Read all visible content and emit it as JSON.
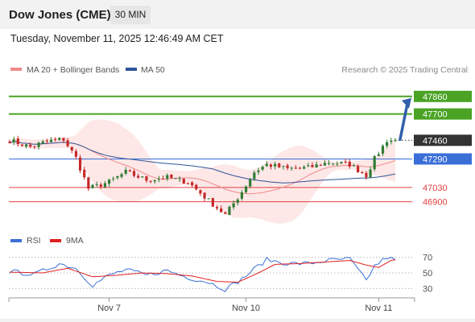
{
  "header": {
    "title": "Dow Jones (CME)",
    "timeframe": "30 MIN",
    "timestamp": "Tuesday, November 11, 2025 12:46:49 AM CET"
  },
  "legend": {
    "ma20_label": "MA 20 + Bollinger Bands",
    "ma50_label": "MA 50",
    "copyright": "Research © 2025 Trading Central",
    "rsi_label": "RSI",
    "rsi_ma_label": "9MA"
  },
  "colors": {
    "ma20": "#f08a8a",
    "ma50": "#2f5597",
    "bollinger_fill": "#fde3e3",
    "resistance": "#4aa324",
    "support_blue": "#3a6fd8",
    "support_red": "#e0413f",
    "current": "#333333",
    "arrow": "#2f5fa8",
    "candle_up": "#2f7d32",
    "candle_down": "#c62828",
    "rsi": "#3a6fd8",
    "rsi_ma": "#e02020"
  },
  "chart_data": {
    "type": "candlestick",
    "price_levels": [
      {
        "label": "47860",
        "value": 47860,
        "kind": "resistance"
      },
      {
        "label": "47700",
        "value": 47700,
        "kind": "resistance"
      },
      {
        "label": "47460",
        "value": 47460,
        "kind": "current"
      },
      {
        "label": "47290",
        "value": 47290,
        "kind": "pivot"
      },
      {
        "label": "47030",
        "value": 47030,
        "kind": "support"
      },
      {
        "label": "46900",
        "value": 46900,
        "kind": "support"
      }
    ],
    "price_ylim": [
      46640,
      48020
    ],
    "x_tick_labels": [
      {
        "label": "Nov 7",
        "index": 24
      },
      {
        "label": "Nov 10",
        "index": 57
      },
      {
        "label": "Nov 11",
        "index": 89
      }
    ],
    "candle_count": 94,
    "close_keyframes": [
      [
        0,
        47460
      ],
      [
        5,
        47400
      ],
      [
        9,
        47450
      ],
      [
        13,
        47470
      ],
      [
        16,
        47300
      ],
      [
        19,
        47020
      ],
      [
        24,
        47080
      ],
      [
        28,
        47170
      ],
      [
        33,
        47100
      ],
      [
        38,
        47120
      ],
      [
        43,
        47080
      ],
      [
        48,
        46910
      ],
      [
        52,
        46780
      ],
      [
        56,
        46990
      ],
      [
        59,
        47170
      ],
      [
        62,
        47240
      ],
      [
        67,
        47200
      ],
      [
        72,
        47210
      ],
      [
        77,
        47260
      ],
      [
        82,
        47240
      ],
      [
        86,
        47140
      ],
      [
        88,
        47290
      ],
      [
        91,
        47460
      ],
      [
        93,
        47460
      ]
    ],
    "projection": {
      "from": 47460,
      "to": 47860
    },
    "rsi": {
      "levels": [
        70,
        50,
        30
      ],
      "ylim": [
        20,
        80
      ],
      "rsi_keyframes": [
        [
          0,
          52
        ],
        [
          6,
          48
        ],
        [
          12,
          62
        ],
        [
          16,
          56
        ],
        [
          20,
          34
        ],
        [
          24,
          47
        ],
        [
          28,
          54
        ],
        [
          33,
          47
        ],
        [
          38,
          53
        ],
        [
          43,
          44
        ],
        [
          48,
          38
        ],
        [
          52,
          29
        ],
        [
          56,
          42
        ],
        [
          59,
          55
        ],
        [
          62,
          67
        ],
        [
          67,
          62
        ],
        [
          72,
          62
        ],
        [
          77,
          66
        ],
        [
          82,
          68
        ],
        [
          86,
          40
        ],
        [
          88,
          59
        ],
        [
          91,
          70
        ],
        [
          93,
          66
        ]
      ],
      "ma_keyframes": [
        [
          0,
          51
        ],
        [
          8,
          50
        ],
        [
          14,
          56
        ],
        [
          20,
          45
        ],
        [
          26,
          47
        ],
        [
          32,
          50
        ],
        [
          38,
          49
        ],
        [
          44,
          46
        ],
        [
          50,
          39
        ],
        [
          55,
          38
        ],
        [
          60,
          50
        ],
        [
          64,
          61
        ],
        [
          70,
          62
        ],
        [
          76,
          64
        ],
        [
          82,
          66
        ],
        [
          86,
          60
        ],
        [
          89,
          57
        ],
        [
          92,
          66
        ],
        [
          93,
          67
        ]
      ]
    }
  }
}
